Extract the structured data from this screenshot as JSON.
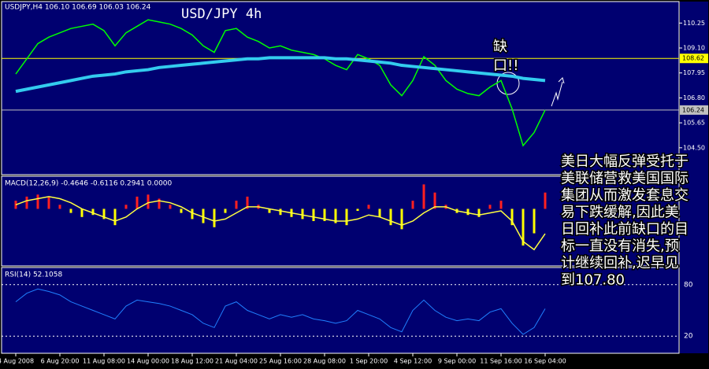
{
  "chart_data": {
    "type": "line",
    "header": "USDJPY,H4 106.10 106.69 106.03 106.24",
    "title": "USD/JPY 4h",
    "annotation_lines": [
      "缺",
      "口!!"
    ],
    "note_lines": [
      "美日大幅反弹受托于",
      "美联储营救美国国际",
      "集团从而激发套息交",
      "易下跌缓解,因此美",
      "日回补此前缺口的目",
      "标一直没有消失,预",
      "计继续回补,迟早见",
      "到107.80"
    ],
    "categories": [
      "4 Aug 2008",
      null,
      null,
      null,
      "6 Aug 20:00",
      null,
      null,
      null,
      "11 Aug 08:00",
      null,
      null,
      null,
      "14 Aug 00:00",
      null,
      null,
      null,
      "18 Aug 12:00",
      null,
      null,
      null,
      "21 Aug 04:00",
      null,
      null,
      null,
      "25 Aug 16:00",
      null,
      null,
      null,
      "28 Aug 08:00",
      null,
      null,
      null,
      "1 Sep 20:00",
      null,
      null,
      null,
      "4 Sep 12:00",
      null,
      null,
      null,
      "9 Sep 00:00",
      null,
      null,
      null,
      "11 Sep 16:00",
      null,
      null,
      null,
      "16 Sep 04:00"
    ],
    "ylim": [
      103.26,
      111.24
    ],
    "yticks": [
      110.25,
      {
        "value": 109.1,
        "label": "109.10"
      },
      107.95,
      {
        "value": 106.8,
        "label": "106.80"
      },
      105.65,
      {
        "value": 104.5,
        "label": "104.50"
      }
    ],
    "price_markers": [
      {
        "value": 108.62,
        "color": "#ffff00"
      },
      {
        "value": 106.24,
        "color": "#c0c0c0"
      }
    ],
    "series": [
      {
        "color": "#00ff00",
        "width": 1.5,
        "values": [
          107.9,
          108.6,
          109.3,
          109.6,
          109.8,
          110.0,
          110.1,
          110.2,
          109.9,
          109.2,
          109.8,
          110.1,
          110.4,
          110.3,
          110.2,
          110.0,
          109.7,
          109.2,
          108.9,
          109.9,
          110.0,
          109.6,
          109.4,
          109.1,
          109.2,
          109.0,
          108.9,
          108.8,
          108.6,
          108.3,
          108.1,
          108.8,
          108.6,
          108.3,
          107.4,
          106.9,
          107.6,
          108.7,
          108.3,
          107.6,
          107.2,
          107.0,
          106.9,
          107.3,
          107.6,
          106.3,
          104.6,
          105.2,
          106.24
        ]
      },
      {
        "color": "#33ccee",
        "width": 4,
        "values": [
          107.1,
          107.2,
          107.3,
          107.4,
          107.5,
          107.6,
          107.7,
          107.8,
          107.85,
          107.9,
          108.0,
          108.05,
          108.1,
          108.2,
          108.25,
          108.3,
          108.35,
          108.4,
          108.45,
          108.5,
          108.55,
          108.6,
          108.6,
          108.65,
          108.65,
          108.65,
          108.65,
          108.65,
          108.65,
          108.6,
          108.6,
          108.55,
          108.5,
          108.45,
          108.4,
          108.3,
          108.25,
          108.2,
          108.15,
          108.1,
          108.05,
          108.0,
          107.95,
          107.9,
          107.85,
          107.8,
          107.7,
          107.65,
          107.6
        ]
      }
    ],
    "macd": {
      "label": "MACD(12,26,9) -0.4646 -0.6116 0.2941 0.0000",
      "ylim": [
        -1.4,
        0.8
      ],
      "up_color": "#ff2020",
      "down_color": "#ffff00",
      "signal_color": "#ffff40",
      "histogram": [
        0.2,
        0.3,
        0.35,
        0.3,
        0.1,
        -0.1,
        -0.2,
        -0.15,
        -0.25,
        -0.4,
        0.1,
        0.3,
        0.35,
        0.25,
        0.1,
        -0.1,
        -0.25,
        -0.35,
        -0.45,
        -0.1,
        0.2,
        0.3,
        0.1,
        -0.1,
        -0.15,
        -0.2,
        -0.25,
        -0.3,
        -0.3,
        -0.35,
        -0.4,
        -0.05,
        0.1,
        -0.2,
        -0.4,
        -0.5,
        0.2,
        0.6,
        0.4,
        0.1,
        -0.1,
        -0.15,
        -0.2,
        0.1,
        0.2,
        -0.4,
        -0.9,
        -0.6,
        0.4
      ],
      "signal": [
        0.1,
        0.2,
        0.25,
        0.3,
        0.25,
        0.15,
        0.0,
        -0.1,
        -0.2,
        -0.3,
        -0.2,
        0.0,
        0.15,
        0.2,
        0.15,
        0.05,
        -0.1,
        -0.2,
        -0.3,
        -0.25,
        -0.1,
        0.05,
        0.05,
        0.0,
        -0.05,
        -0.1,
        -0.15,
        -0.2,
        -0.25,
        -0.3,
        -0.3,
        -0.25,
        -0.15,
        -0.2,
        -0.3,
        -0.4,
        -0.3,
        -0.1,
        0.05,
        0.05,
        -0.05,
        -0.1,
        -0.15,
        -0.1,
        -0.05,
        -0.3,
        -0.8,
        -1.0,
        -0.61
      ]
    },
    "rsi": {
      "label": "RSI(14) 52.1058",
      "ylim": [
        0,
        100
      ],
      "yticks": [
        80,
        20
      ],
      "color": "#2080ff",
      "values": [
        60,
        70,
        75,
        72,
        68,
        60,
        55,
        50,
        45,
        40,
        55,
        62,
        60,
        58,
        55,
        50,
        45,
        35,
        30,
        55,
        60,
        50,
        45,
        40,
        45,
        42,
        45,
        40,
        38,
        35,
        38,
        50,
        45,
        40,
        30,
        25,
        50,
        62,
        50,
        42,
        38,
        40,
        38,
        48,
        52,
        35,
        22,
        30,
        52
      ]
    }
  }
}
